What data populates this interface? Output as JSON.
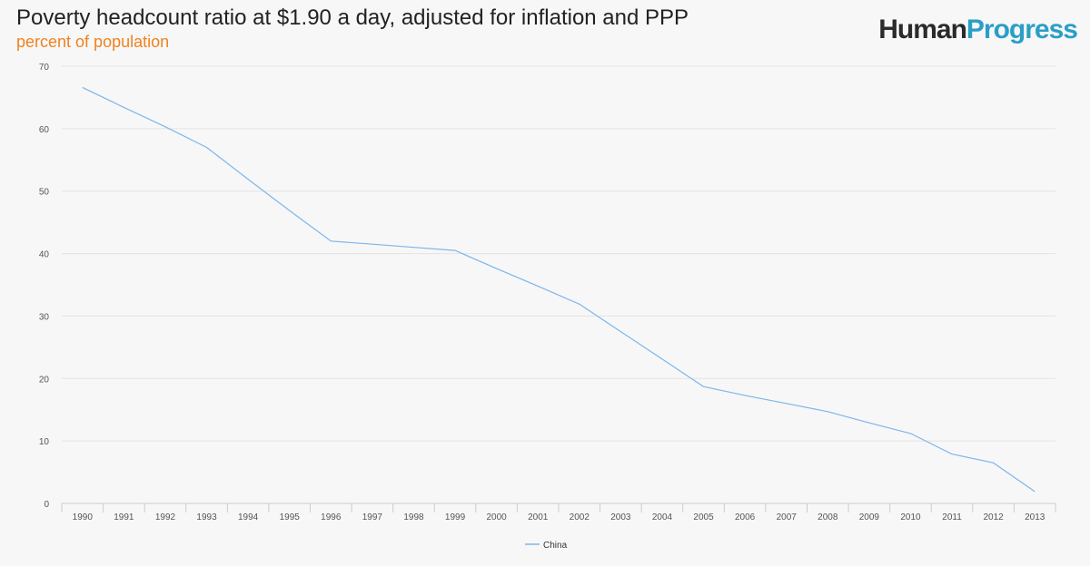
{
  "chart_data": {
    "type": "line",
    "title": "Poverty headcount ratio at $1.90 a day, adjusted for inflation and PPP",
    "subtitle": "percent of population",
    "xlabel": "",
    "ylabel": "",
    "ylim": [
      0,
      70
    ],
    "yticks": [
      "0",
      "10",
      "20",
      "30",
      "40",
      "50",
      "60",
      "70"
    ],
    "categories": [
      "1990",
      "1991",
      "1992",
      "1993",
      "1994",
      "1995",
      "1996",
      "1997",
      "1998",
      "1999",
      "2000",
      "2001",
      "2002",
      "2003",
      "2004",
      "2005",
      "2006",
      "2007",
      "2008",
      "2009",
      "2010",
      "2011",
      "2012",
      "2013"
    ],
    "series": [
      {
        "name": "China",
        "color": "#7cb5ec",
        "values": [
          66.6,
          63.4,
          60.3,
          57.0,
          51.9,
          46.9,
          42.0,
          41.5,
          41.0,
          40.5,
          37.6,
          34.8,
          31.9,
          27.5,
          23.1,
          18.7,
          17.3,
          16.0,
          14.7,
          12.9,
          11.2,
          7.9,
          6.5,
          1.9
        ]
      }
    ],
    "grid": true,
    "legend": "bottom-center"
  },
  "brand": {
    "part1": "Human",
    "part2": "Progress",
    "color1": "#2b2b2b",
    "color2": "#2a9fc6"
  }
}
